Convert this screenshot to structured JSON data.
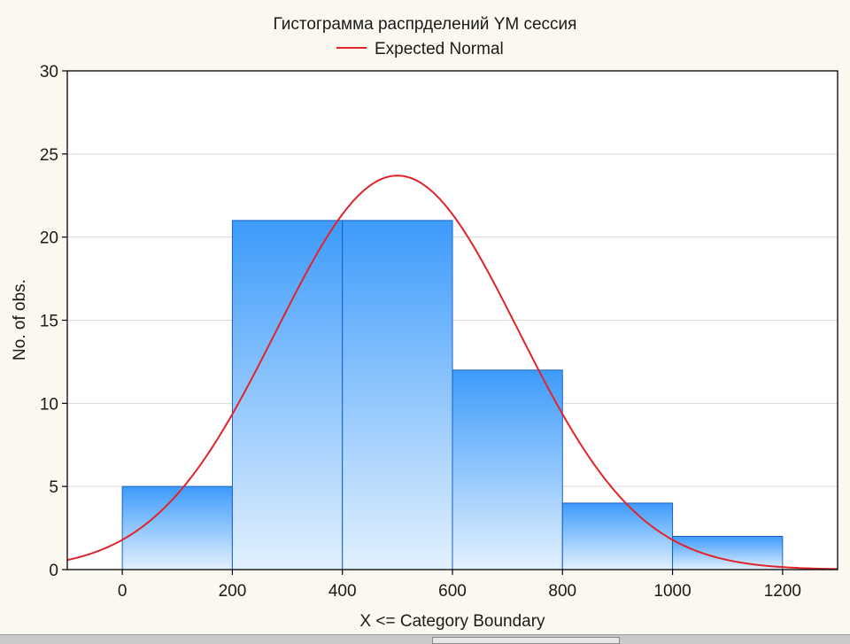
{
  "chart_data": {
    "type": "bar",
    "title": "Гистограмма распрделений YM сессия",
    "xlabel": "X <= Category Boundary",
    "ylabel": "No. of obs.",
    "legend": {
      "placement": "top-center",
      "entries": [
        "Expected Normal"
      ]
    },
    "xlim": [
      -100,
      1300
    ],
    "ylim": [
      0,
      30
    ],
    "x_ticks": [
      0,
      200,
      400,
      600,
      800,
      1000,
      1200
    ],
    "y_ticks": [
      0,
      5,
      10,
      15,
      20,
      25,
      30
    ],
    "grid": true,
    "bins": [
      {
        "from": 0,
        "to": 200,
        "value": 5
      },
      {
        "from": 200,
        "to": 400,
        "value": 21
      },
      {
        "from": 400,
        "to": 600,
        "value": 21
      },
      {
        "from": 600,
        "to": 800,
        "value": 12
      },
      {
        "from": 800,
        "to": 1000,
        "value": 4
      },
      {
        "from": 1000,
        "to": 1200,
        "value": 2
      }
    ],
    "series": [
      {
        "name": "Expected Normal",
        "type": "line",
        "distribution": "normal",
        "mean": 500,
        "sd": 220,
        "peak": 23.7,
        "color": "#e0242c"
      }
    ],
    "colors": {
      "bar_top": "#3d9bfb",
      "bar_bottom": "#e3f1fe",
      "bar_edge": "#1a5fc9",
      "curve": "#e0242c"
    }
  }
}
